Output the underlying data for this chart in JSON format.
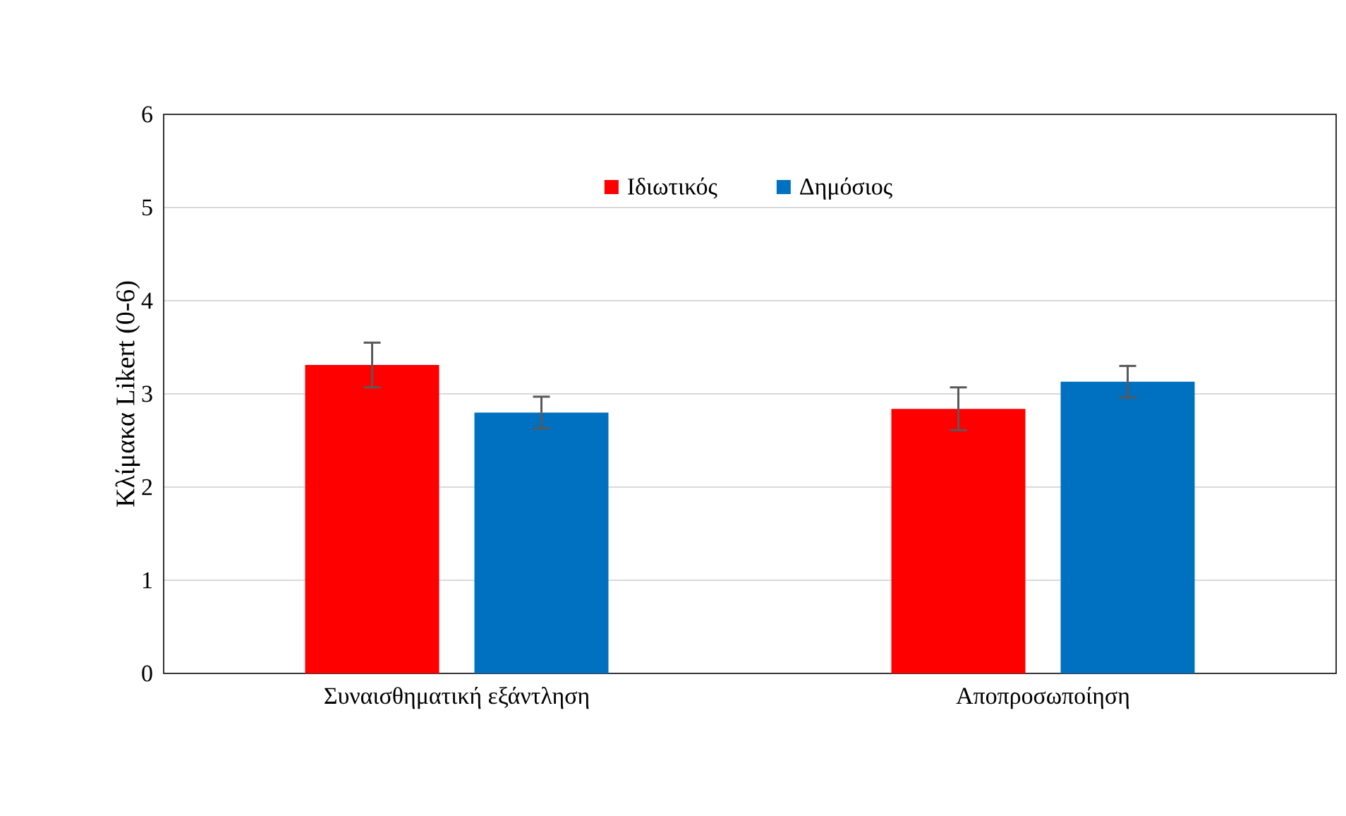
{
  "chart_data": {
    "type": "bar",
    "ylabel": "Κλίμακα Likert (0-6)",
    "categories": [
      "Συναισθηματική εξάντληση",
      "Αποπροσωποίηση"
    ],
    "series": [
      {
        "name": "Ιδιωτικός",
        "color": "#ff0000",
        "values": [
          3.31,
          2.84
        ],
        "errors": [
          0.24,
          0.23
        ]
      },
      {
        "name": "Δημόσιος",
        "color": "#0070c0",
        "values": [
          2.8,
          3.13
        ],
        "errors": [
          0.17,
          0.17
        ]
      }
    ],
    "ylim": [
      0,
      6
    ],
    "yticks": [
      0,
      1,
      2,
      3,
      4,
      5,
      6
    ],
    "grid": "y",
    "legend": "top"
  }
}
